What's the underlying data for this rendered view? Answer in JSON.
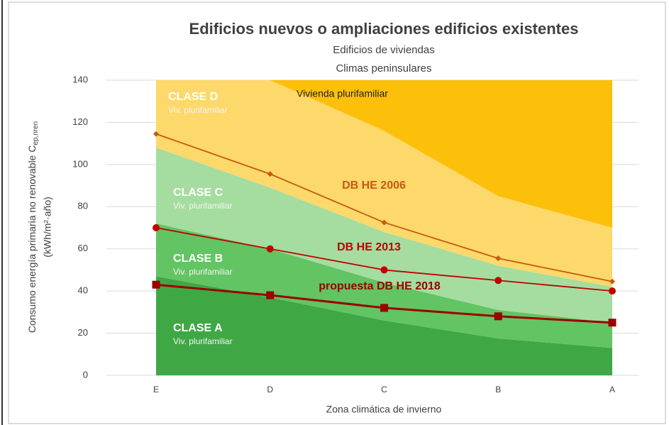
{
  "chart_data": {
    "type": "area",
    "title": "Edificios nuevos o ampliaciones edificios existentes",
    "subtitle": [
      "Edificios de viviendas",
      "Climas peninsulares"
    ],
    "ylabel": {
      "text": "Consumo energía primaria no renovable C",
      "subscript": "ep,nren",
      "unit": "(kWh/m²·año)"
    },
    "xlabel": "Zona climática de invierno",
    "categories": [
      "E",
      "D",
      "C",
      "B",
      "A"
    ],
    "ylim": [
      0,
      140
    ],
    "yticks": [
      0,
      20,
      40,
      60,
      80,
      100,
      120,
      140
    ],
    "grid": true,
    "series": [
      {
        "name": "CLASE A",
        "sublabel": "Viv. plurifamiliar",
        "kind": "area",
        "color": "#3fa845",
        "values": [
          47,
          37,
          26,
          17.5,
          13
        ]
      },
      {
        "name": "CLASE B",
        "sublabel": "Viv. plurifamiliar",
        "kind": "area",
        "color": "#62c462",
        "values": [
          25,
          23,
          18,
          13.5,
          12
        ]
      },
      {
        "name": "CLASE C",
        "sublabel": "Viv. plurifamiliar",
        "kind": "area",
        "color": "#a5dca0",
        "values": [
          36,
          29,
          24,
          21,
          17
        ]
      },
      {
        "name": "CLASE D",
        "sublabel": "Viv. plurifamiliar",
        "kind": "area",
        "color": "#fdd86a",
        "values": [
          32,
          51,
          48,
          33,
          28
        ]
      },
      {
        "name": "Vivienda plurifamiliar",
        "kind": "area",
        "color": "#fcbf0a",
        "values": [
          0,
          0,
          24,
          55,
          70
        ]
      },
      {
        "name": "DB HE 2006",
        "kind": "line",
        "marker": "diamond",
        "color": "#c55a11",
        "values": [
          114.5,
          95.5,
          72.5,
          55.5,
          44.5
        ]
      },
      {
        "name": "DB HE 2013",
        "kind": "line",
        "marker": "circle",
        "color": "#c00000",
        "values": [
          70,
          60,
          50,
          45,
          40
        ]
      },
      {
        "name": "propuesta DB HE 2018",
        "kind": "line",
        "marker": "square",
        "color": "#9b0000",
        "values": [
          43,
          38,
          32,
          28,
          25
        ]
      }
    ]
  }
}
